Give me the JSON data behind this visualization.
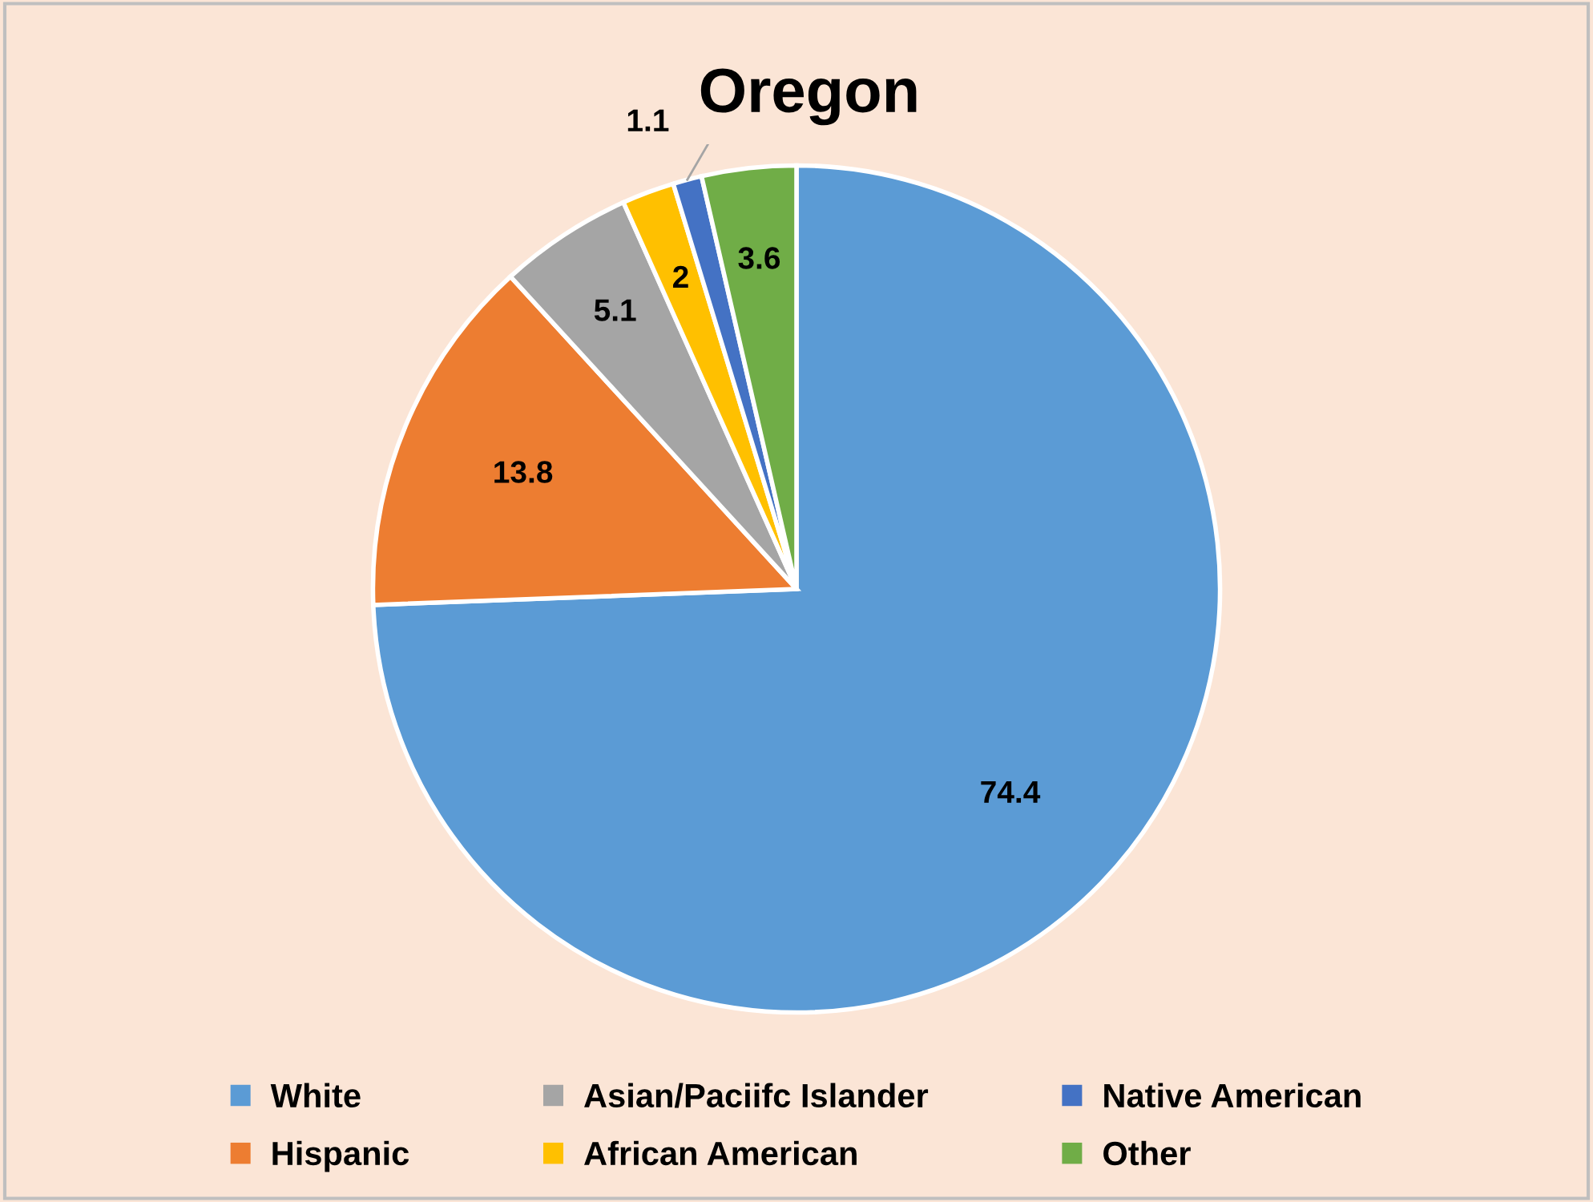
{
  "chart_data": {
    "type": "pie",
    "title": "Oregon",
    "categories": [
      "White",
      "Hispanic",
      "Asian/Paciifc Islander",
      "African American",
      "Native American",
      "Other"
    ],
    "values": [
      74.4,
      13.8,
      5.1,
      2,
      1.1,
      3.6
    ],
    "colors": [
      "#5b9bd5",
      "#ed7d31",
      "#a5a5a5",
      "#ffc000",
      "#4472c4",
      "#70ad47"
    ],
    "data_labels": true,
    "legend": "bottom"
  }
}
